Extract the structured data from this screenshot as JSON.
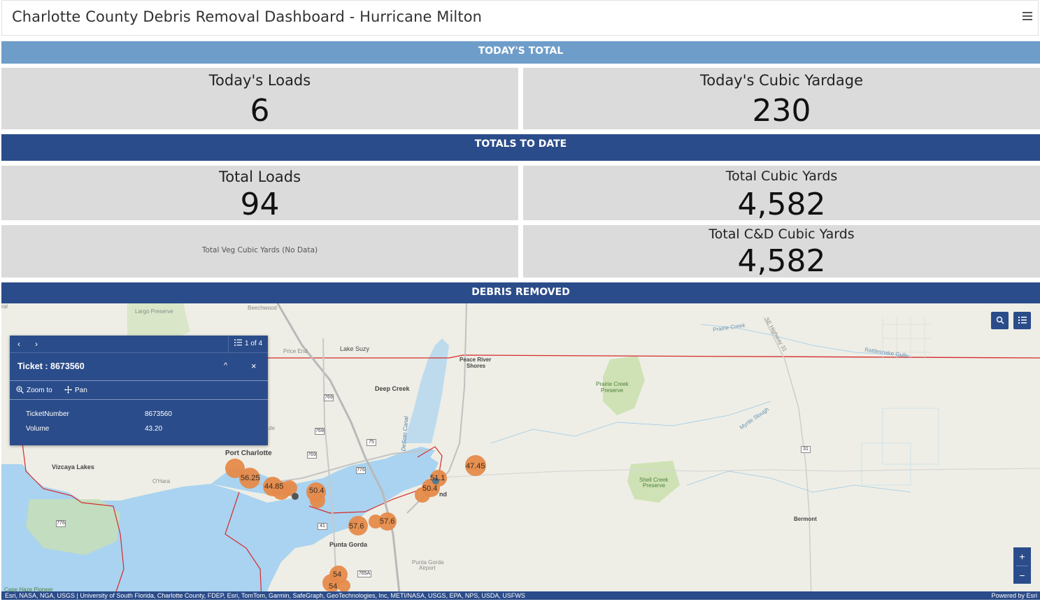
{
  "header": {
    "title": "Charlotte County Debris Removal Dashboard - Hurricane Milton",
    "menu_icon": "hamburger-icon"
  },
  "sections": {
    "today": "TODAY'S TOTAL",
    "totals": "TOTALS TO DATE",
    "debris": "DEBRIS REMOVED"
  },
  "indicators": {
    "todays_loads": {
      "label": "Today's Loads",
      "value": "6"
    },
    "todays_cubic": {
      "label": "Today's Cubic Yardage",
      "value": "230"
    },
    "total_loads": {
      "label": "Total Loads",
      "value": "94"
    },
    "total_cubic": {
      "label": "Total Cubic Yards",
      "value": "4,582"
    },
    "veg_cubic": {
      "label": "Total Veg Cubic Yards (No Data)"
    },
    "cd_cubic": {
      "label": "Total C&D Cubic Yards",
      "value": "4,582"
    }
  },
  "popup": {
    "prev": "‹",
    "next": "›",
    "count": "1 of 4",
    "title": "Ticket : 8673560",
    "collapse": "^",
    "close": "×",
    "zoom_to": "Zoom to",
    "pan": "Pan",
    "fields": [
      {
        "name": "TicketNumber",
        "value": "8673560"
      },
      {
        "name": "Volume",
        "value": "43.20"
      }
    ]
  },
  "map": {
    "attribution": "Esri, NASA, NGA, USGS | University of South Florida, Charlotte County, FDEP, Esri, TomTom, Garmin, SafeGraph, GeoTechnologies, Inc, METI/NASA, USGS, EPA, NPS, USDA, USFWS",
    "powered_by": "Powered by Esri",
    "zoom_in": "+",
    "zoom_out": "−",
    "places": [
      {
        "name": "Largo Preserve"
      },
      {
        "name": "Beechwood"
      },
      {
        "name": "Price End"
      },
      {
        "name": "Lake Suzy"
      },
      {
        "name": "Peace River"
      },
      {
        "name": "Shores"
      },
      {
        "name": "Deep Creek"
      },
      {
        "name": "Port Charlotte"
      },
      {
        "name": "Vizcaya Lakes"
      },
      {
        "name": "O'Hara"
      },
      {
        "name": "Punta Gorda"
      },
      {
        "name": "Punta Gorda"
      },
      {
        "name": "Airport"
      },
      {
        "name": "Bermont"
      },
      {
        "name": "Prairie Creek"
      },
      {
        "name": "Preserve"
      },
      {
        "name": "Shell Creek"
      },
      {
        "name": "Preserve"
      },
      {
        "name": "Prairie Creek"
      },
      {
        "name": "Rattlesnake Gully"
      },
      {
        "name": "Myrtle Slough"
      },
      {
        "name": "SE Highway 31"
      },
      {
        "name": "DeSoto Canal"
      },
      {
        "name": "ral"
      },
      {
        "name": "de"
      },
      {
        "name": "nd"
      },
      {
        "name": "Cape Haze Pioneer"
      }
    ],
    "routes": [
      "769",
      "769",
      "769",
      "75",
      "776",
      "776",
      "41",
      "31",
      "765A"
    ],
    "clusters": [
      "56.25",
      "44.85",
      "50.4",
      "57.6",
      "57.6",
      "50.4",
      "51.1",
      "47.45",
      "54",
      "54"
    ]
  }
}
